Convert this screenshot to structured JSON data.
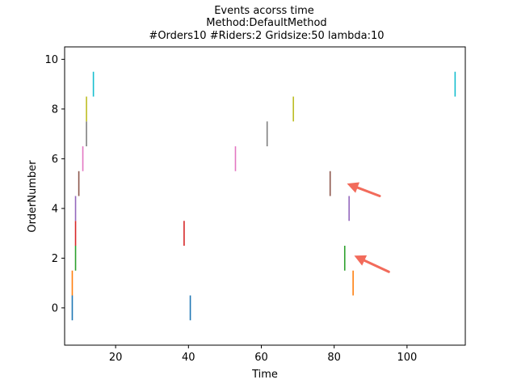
{
  "chart_data": {
    "type": "event-plot",
    "title_lines": [
      "Events acorss time",
      "Method:DefaultMethod",
      "#Orders10  #Riders:2  Gridsize:50  lambda:10"
    ],
    "xlabel": "Time",
    "ylabel": "OrderNumber",
    "xlim": [
      6,
      116
    ],
    "ylim": [
      -1.5,
      10.5
    ],
    "xticks": [
      20,
      40,
      60,
      80,
      100
    ],
    "yticks": [
      0,
      2,
      4,
      6,
      8,
      10
    ],
    "grid": false,
    "series": [
      {
        "order": 0,
        "color": "#1f77b4",
        "times": [
          8.1,
          40.5
        ]
      },
      {
        "order": 1,
        "color": "#ff7f0e",
        "times": [
          8.1,
          85.2
        ]
      },
      {
        "order": 2,
        "color": "#2ca02c",
        "times": [
          9.0,
          82.9
        ]
      },
      {
        "order": 3,
        "color": "#d62728",
        "times": [
          9.0,
          38.8
        ]
      },
      {
        "order": 4,
        "color": "#9467bd",
        "times": [
          9.0,
          84.1
        ]
      },
      {
        "order": 5,
        "color": "#8c564b",
        "times": [
          9.9,
          78.9
        ]
      },
      {
        "order": 6,
        "color": "#e377c2",
        "times": [
          11.0,
          52.9
        ]
      },
      {
        "order": 7,
        "color": "#7f7f7f",
        "times": [
          12.0,
          61.6
        ]
      },
      {
        "order": 8,
        "color": "#bcbd22",
        "times": [
          12.0,
          68.8
        ]
      },
      {
        "order": 9,
        "color": "#17becf",
        "times": [
          13.9,
          113.2
        ]
      }
    ],
    "annotations": [
      {
        "type": "arrow",
        "color": "#f26b5b",
        "from": [
          92.5,
          4.5
        ],
        "to": [
          83.5,
          5.0
        ]
      },
      {
        "type": "arrow",
        "color": "#f26b5b",
        "from": [
          95.0,
          1.45
        ],
        "to": [
          85.5,
          2.1
        ]
      }
    ]
  }
}
